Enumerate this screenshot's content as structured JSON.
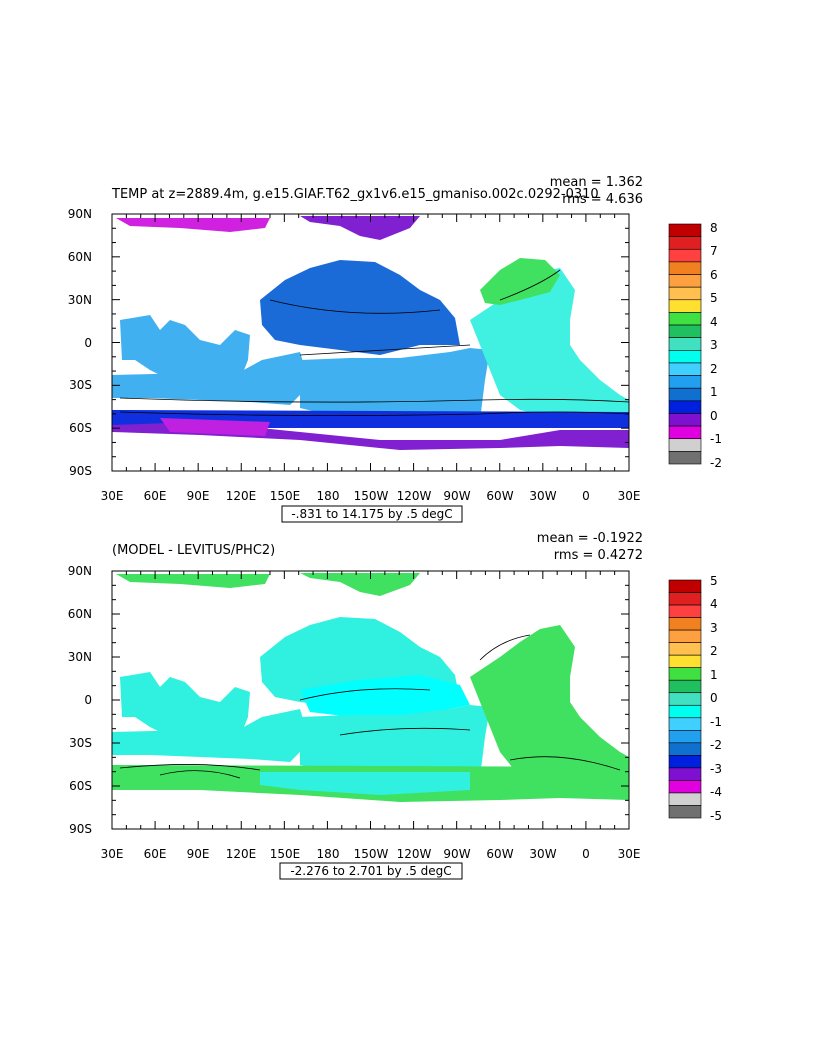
{
  "panels": [
    {
      "id": "temp",
      "title": "TEMP at z=2889.4m, g.e15.GIAF.T62_gx1v6.e15_gmaniso.002c.0292-0310",
      "mean_text": "mean = 1.362",
      "rms_text": "rms = 4.636",
      "range_note": "-.831 to 14.175 by .5 degC",
      "colorbar_labels": [
        "8",
        "7",
        "6",
        "5",
        "4",
        "3",
        "2",
        "1",
        "0",
        "-1",
        "-2"
      ],
      "colorbar_colors": [
        "#c00000",
        "#e02020",
        "#ff4040",
        "#f08020",
        "#ffa040",
        "#ffc050",
        "#ffe030",
        "#40e040",
        "#20c060",
        "#40e0c0",
        "#00ffee",
        "#40d0ff",
        "#20a0ee",
        "#1070d0",
        "#0020e0",
        "#8010d0",
        "#e000e0",
        "#d0d0d0",
        "#707070"
      ],
      "land_color": "#ffffff"
    },
    {
      "id": "diff",
      "title": "(MODEL - LEVITUS/PHC2)",
      "mean_text": "mean = -0.1922",
      "rms_text": "rms = 0.4272",
      "range_note": "-2.276 to 2.701 by .5 degC",
      "colorbar_labels": [
        "5",
        "4",
        "3",
        "2",
        "1",
        "0",
        "-1",
        "-2",
        "-3",
        "-4",
        "-5"
      ],
      "colorbar_colors": [
        "#c00000",
        "#e02020",
        "#ff4040",
        "#f08020",
        "#ffa040",
        "#ffc050",
        "#ffe030",
        "#40e040",
        "#20c060",
        "#40e0c0",
        "#00ffee",
        "#40d0ff",
        "#20a0ee",
        "#1070d0",
        "#0020e0",
        "#8010d0",
        "#e000e0",
        "#d0d0d0",
        "#707070"
      ],
      "land_color": "#ffffff"
    }
  ],
  "axes": {
    "lon_labels": [
      "30E",
      "60E",
      "90E",
      "120E",
      "150E",
      "180",
      "150W",
      "120W",
      "90W",
      "60W",
      "30W",
      "0",
      "30E"
    ],
    "lat_labels": [
      "90N",
      "60N",
      "30N",
      "0",
      "30S",
      "60S",
      "90S"
    ]
  },
  "colors": {
    "temp_deep_blue": "#1a6ad8",
    "temp_light_blue": "#40b0f0",
    "temp_cyan": "#40f0e0",
    "temp_green": "#40e060",
    "temp_purple": "#c020e0",
    "temp_violet": "#8020d0",
    "temp_blue_band": "#1030e0",
    "diff_cyan": "#30f0e0",
    "diff_aqua": "#00ffff",
    "diff_green": "#40e060"
  }
}
